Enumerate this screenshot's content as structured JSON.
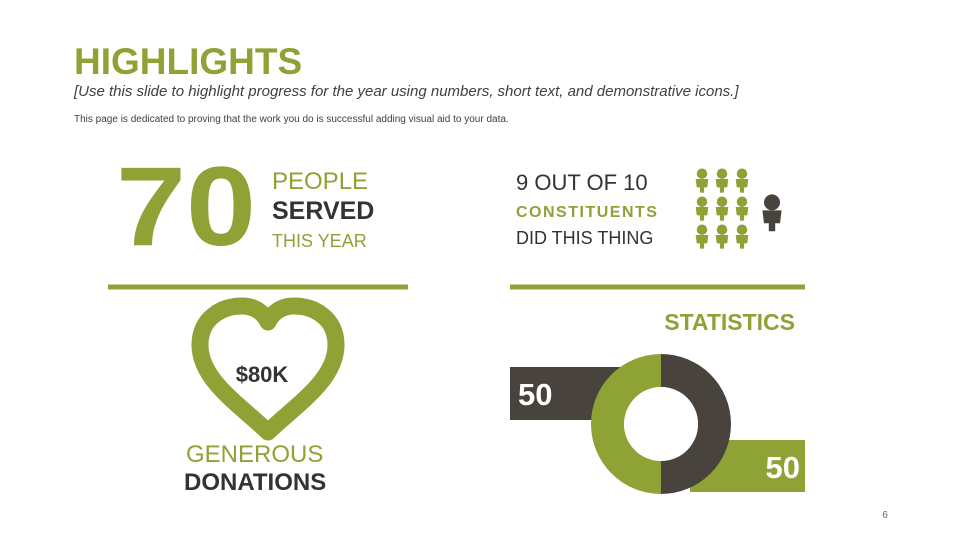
{
  "header": {
    "title": "HIGHLIGHTS",
    "subtitle": "[Use this slide to highlight progress for the year using numbers, short text, and demonstrative icons.]",
    "description": "This page is dedicated to proving that the work you do is successful adding visual aid to your data."
  },
  "people": {
    "number": "70",
    "line1": "PEOPLE",
    "line2": "SERVED",
    "line3": "THIS YEAR"
  },
  "constituents": {
    "line1": "9 OUT OF 10",
    "line2": "CONSTITUENTS",
    "line3": "DID THIS THING"
  },
  "donations": {
    "amount": "$80K",
    "line1": "GENEROUS",
    "line2": "DONATIONS"
  },
  "chart_data": {
    "type": "pie",
    "title": "STATISTICS",
    "values": [
      50,
      50
    ],
    "colors": [
      "#48443d",
      "#8ea236"
    ]
  },
  "page_number": "6"
}
